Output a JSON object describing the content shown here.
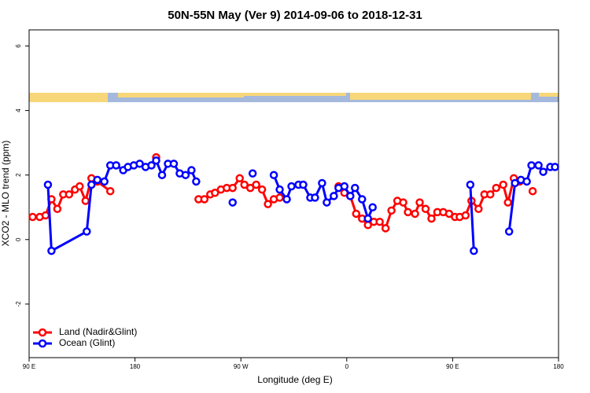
{
  "chart_data": {
    "type": "line",
    "title": "50N-55N May (Ver 9)   2014-09-06 to 2018-12-31",
    "x_label": "Longitude (deg E)",
    "y_label": "XCO2 - MLO trend (ppm)",
    "xlim": [
      90,
      540
    ],
    "ylim": [
      -3.66,
      6.5
    ],
    "xticks": [
      {
        "value": 90,
        "label": "90 E"
      },
      {
        "value": 180,
        "label": "180"
      },
      {
        "value": 270,
        "label": "90 W"
      },
      {
        "value": 360,
        "label": "0"
      },
      {
        "value": 450,
        "label": "90 E"
      },
      {
        "value": 540,
        "label": "180"
      }
    ],
    "yticks": [
      -2,
      0,
      2,
      4,
      6
    ],
    "legend": "bottom-left",
    "series": [
      {
        "name": "Land (Nadir&Glint)",
        "color": "#ff0000",
        "x": [
          93,
          99,
          104,
          109,
          114,
          119,
          124,
          129,
          133,
          138,
          143,
          148,
          159,
          null,
          198,
          null,
          234,
          239,
          244,
          248,
          253,
          258,
          263,
          269,
          273,
          278,
          283,
          288,
          293,
          298,
          303,
          null,
          353,
          358,
          363,
          368,
          373,
          378,
          383,
          388,
          393,
          398,
          403,
          408,
          412,
          418,
          422,
          427,
          432,
          437,
          442,
          447,
          452,
          456,
          461,
          466,
          472,
          477,
          482,
          487,
          493,
          497,
          502,
          507,
          null,
          518
        ],
        "values": [
          0.7,
          0.7,
          0.75,
          1.25,
          0.95,
          1.4,
          1.4,
          1.55,
          1.65,
          1.2,
          1.9,
          1.8,
          1.5,
          null,
          2.55,
          null,
          1.25,
          1.25,
          1.4,
          1.45,
          1.55,
          1.6,
          1.6,
          1.9,
          1.7,
          1.6,
          1.7,
          1.55,
          1.1,
          1.25,
          1.3,
          null,
          1.65,
          1.45,
          1.35,
          0.8,
          0.65,
          0.45,
          0.55,
          0.55,
          0.35,
          0.9,
          1.2,
          1.15,
          0.85,
          0.8,
          1.15,
          0.95,
          0.65,
          0.85,
          0.85,
          0.8,
          0.7,
          0.7,
          0.75,
          1.2,
          0.95,
          1.4,
          1.4,
          1.6,
          1.7,
          1.15,
          1.9,
          1.8,
          null,
          1.5
        ]
      },
      {
        "name": "Ocean (Glint)",
        "color": "#0000ff",
        "x": [
          106,
          109,
          139,
          143,
          148,
          154,
          159,
          164,
          170,
          174,
          179,
          184,
          189,
          194,
          198,
          203,
          208,
          213,
          218,
          223,
          228,
          232,
          null,
          263,
          null,
          280,
          null,
          298,
          303,
          309,
          313,
          319,
          323,
          329,
          333,
          339,
          343,
          349,
          353,
          358,
          363,
          367,
          373,
          378,
          382,
          null,
          465,
          468,
          null,
          498,
          503,
          508,
          513,
          517,
          523,
          527,
          533,
          537
        ],
        "values": [
          1.7,
          -0.35,
          0.25,
          1.7,
          1.85,
          1.8,
          2.3,
          2.3,
          2.15,
          2.25,
          2.3,
          2.35,
          2.25,
          2.3,
          2.45,
          2.0,
          2.35,
          2.35,
          2.05,
          2.0,
          2.15,
          1.8,
          null,
          1.15,
          null,
          2.05,
          null,
          2.0,
          1.55,
          1.25,
          1.65,
          1.7,
          1.7,
          1.3,
          1.3,
          1.75,
          1.15,
          1.35,
          1.6,
          1.65,
          1.35,
          1.6,
          1.25,
          0.65,
          1.0,
          null,
          1.7,
          -0.35,
          null,
          0.25,
          1.75,
          1.85,
          1.8,
          2.3,
          2.3,
          2.1,
          2.25,
          2.25
        ]
      }
    ]
  }
}
